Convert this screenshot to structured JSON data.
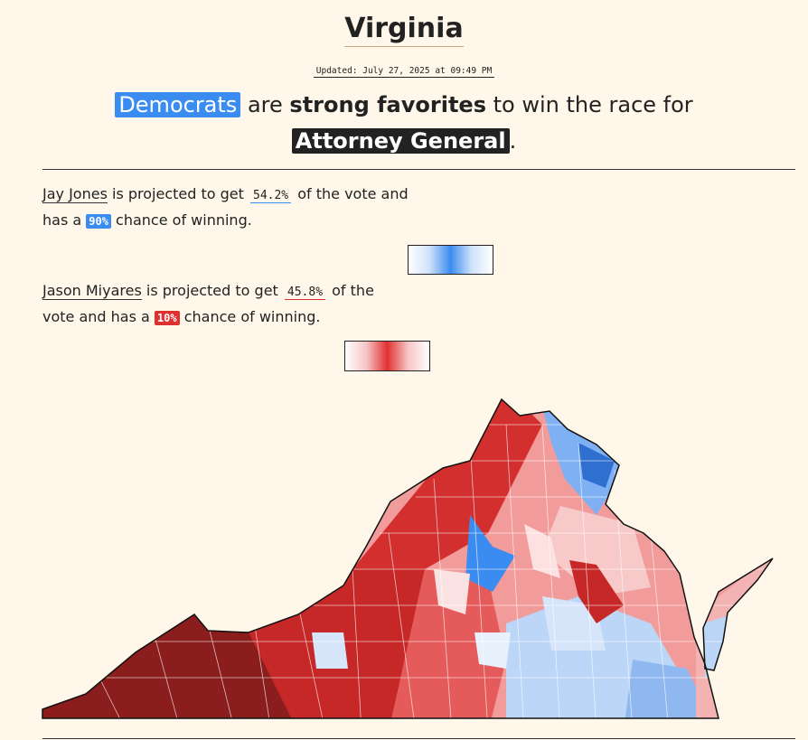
{
  "header": {
    "title": "Virginia",
    "updated": "Updated: July 27, 2025 at 09:49 PM"
  },
  "headline": {
    "party": "Democrats",
    "verb": "are",
    "strength": "strong favorites",
    "middle": "to win the race for",
    "race": "Attorney General",
    "end": "."
  },
  "candidates": [
    {
      "name": "Jay Jones",
      "projected": "is projected to get",
      "share": "54.2%",
      "rest": "of the vote and has a",
      "chance": "90%",
      "end": "chance of winning."
    },
    {
      "name": "Jason Miyares",
      "projected": "is projected to get",
      "share": "45.8%",
      "rest": "of the vote and has a",
      "chance": "10%",
      "end": "chance of winning."
    }
  ]
}
